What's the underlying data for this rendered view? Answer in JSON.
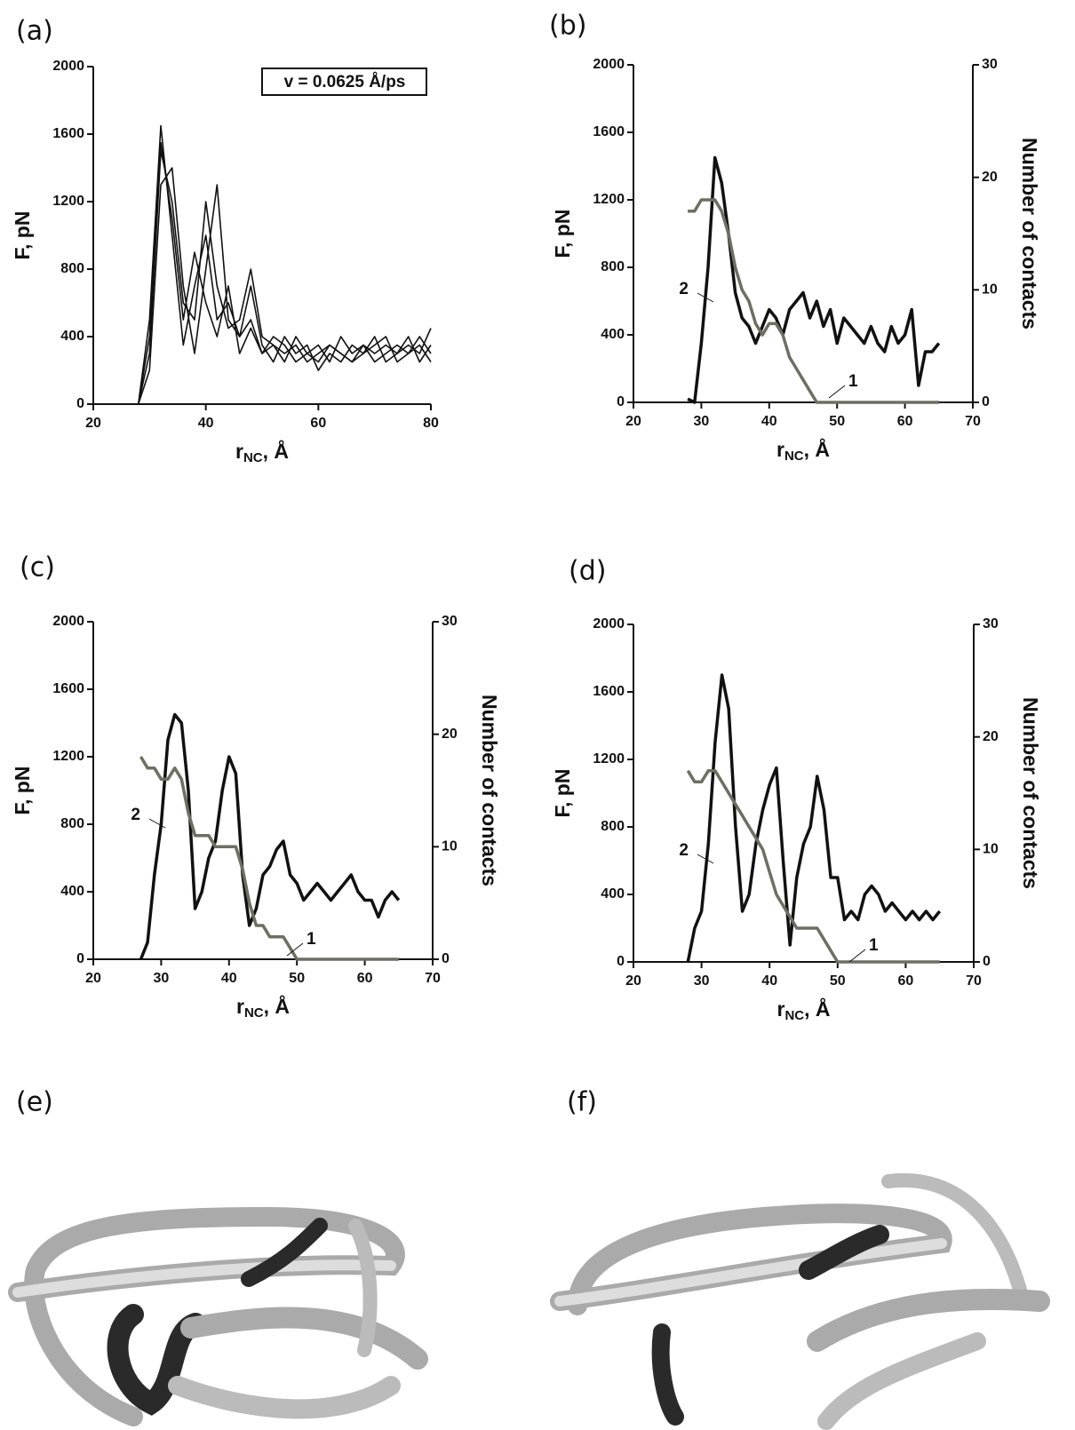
{
  "chart_data": [
    {
      "type": "line",
      "label": "(a)",
      "annotation": "v = 0.0625 Å/ps",
      "xlabel": {
        "main": "r",
        "sub": "NC",
        "rest": ", Å"
      },
      "ylabel": "F, pN",
      "xlim": [
        20,
        80
      ],
      "xticks": [
        20,
        40,
        60,
        80
      ],
      "ylim": [
        0,
        2000
      ],
      "yticks": [
        0,
        400,
        800,
        1200,
        1600,
        2000
      ],
      "x": [
        28,
        30,
        32,
        34,
        36,
        38,
        40,
        42,
        44,
        46,
        48,
        50,
        52,
        54,
        56,
        58,
        60,
        62,
        64,
        66,
        68,
        70,
        72,
        74,
        76,
        78,
        80
      ],
      "series": [
        {
          "color": "#111111",
          "values": [
            0,
            300,
            1500,
            1200,
            600,
            500,
            1200,
            700,
            450,
            500,
            800,
            400,
            350,
            300,
            350,
            250,
            300,
            350,
            300,
            250,
            350,
            300,
            350,
            300,
            400,
            250,
            350
          ]
        },
        {
          "color": "#111111",
          "values": [
            0,
            500,
            1650,
            1000,
            350,
            700,
            1000,
            500,
            600,
            400,
            500,
            300,
            400,
            350,
            250,
            300,
            350,
            250,
            400,
            300,
            350,
            250,
            300,
            350,
            300,
            400,
            300
          ]
        },
        {
          "color": "#111111",
          "values": [
            0,
            200,
            1300,
            1400,
            700,
            300,
            800,
            1300,
            500,
            400,
            700,
            350,
            250,
            400,
            300,
            350,
            200,
            300,
            250,
            350,
            300,
            400,
            250,
            300,
            350,
            300,
            450
          ]
        },
        {
          "color": "#111111",
          "values": [
            0,
            400,
            1550,
            1100,
            500,
            900,
            600,
            400,
            700,
            300,
            450,
            300,
            350,
            250,
            400,
            300,
            250,
            350,
            300,
            250,
            300,
            350,
            400,
            250,
            300,
            350,
            250
          ]
        }
      ]
    },
    {
      "type": "line",
      "label": "(b)",
      "xlabel": {
        "main": "r",
        "sub": "NC",
        "rest": ", Å"
      },
      "ylabel": "F, pN",
      "y2label": "Number of contacts",
      "xlim": [
        20,
        70
      ],
      "xticks": [
        20,
        30,
        40,
        50,
        60,
        70
      ],
      "ylim": [
        0,
        2000
      ],
      "yticks": [
        0,
        400,
        800,
        1200,
        1600,
        2000
      ],
      "y2lim": [
        0,
        30
      ],
      "y2ticks": [
        0,
        10,
        20,
        30
      ],
      "x": [
        28,
        29,
        30,
        31,
        32,
        33,
        34,
        35,
        36,
        37,
        38,
        39,
        40,
        41,
        42,
        43,
        44,
        45,
        46,
        47,
        48,
        49,
        50,
        51,
        52,
        53,
        54,
        55,
        56,
        57,
        58,
        59,
        60,
        61,
        62,
        63,
        64,
        65
      ],
      "series": [
        {
          "name": "2",
          "color": "#111111",
          "values": [
            20,
            0,
            350,
            800,
            1450,
            1300,
            1000,
            650,
            500,
            450,
            350,
            450,
            550,
            500,
            400,
            550,
            600,
            650,
            500,
            600,
            450,
            550,
            350,
            500,
            450,
            400,
            350,
            450,
            350,
            300,
            450,
            350,
            400,
            550,
            100,
            300,
            300,
            350
          ]
        },
        {
          "name": "1",
          "color": "#6e6e62",
          "axis": "y2",
          "values": [
            17,
            17,
            18,
            18,
            18,
            17,
            15,
            12,
            10,
            9,
            7,
            6,
            7,
            7,
            6,
            4,
            3,
            2,
            1,
            0,
            0,
            0,
            0,
            0,
            0,
            0,
            0,
            0,
            0,
            0,
            0,
            0,
            0,
            0,
            0,
            0,
            0,
            0
          ]
        }
      ]
    },
    {
      "type": "line",
      "label": "(c)",
      "xlabel": {
        "main": "r",
        "sub": "NC",
        "rest": ", Å"
      },
      "ylabel": "F, pN",
      "y2label": "Number of contacts",
      "xlim": [
        20,
        70
      ],
      "xticks": [
        20,
        30,
        40,
        50,
        60,
        70
      ],
      "ylim": [
        0,
        2000
      ],
      "yticks": [
        0,
        400,
        800,
        1200,
        1600,
        2000
      ],
      "y2lim": [
        0,
        30
      ],
      "y2ticks": [
        0,
        10,
        20,
        30
      ],
      "x": [
        27,
        28,
        29,
        30,
        31,
        32,
        33,
        34,
        35,
        36,
        37,
        38,
        39,
        40,
        41,
        42,
        43,
        44,
        45,
        46,
        47,
        48,
        49,
        50,
        51,
        52,
        53,
        54,
        55,
        56,
        57,
        58,
        59,
        60,
        61,
        62,
        63,
        64,
        65
      ],
      "series": [
        {
          "name": "2",
          "color": "#111111",
          "values": [
            0,
            100,
            500,
            800,
            1300,
            1450,
            1400,
            1000,
            300,
            400,
            600,
            700,
            1000,
            1200,
            1100,
            500,
            200,
            300,
            500,
            550,
            650,
            700,
            500,
            450,
            350,
            400,
            450,
            400,
            350,
            400,
            450,
            500,
            400,
            350,
            350,
            250,
            350,
            400,
            350
          ]
        },
        {
          "name": "1",
          "color": "#6e6e62",
          "axis": "y2",
          "values": [
            18,
            17,
            17,
            16,
            16,
            17,
            16,
            13,
            11,
            11,
            11,
            10,
            10,
            10,
            10,
            8,
            5,
            3,
            3,
            2,
            2,
            2,
            1,
            0,
            0,
            0,
            0,
            0,
            0,
            0,
            0,
            0,
            0,
            0,
            0,
            0,
            0,
            0,
            0
          ]
        }
      ]
    },
    {
      "type": "line",
      "label": "(d)",
      "xlabel": {
        "main": "r",
        "sub": "NC",
        "rest": ", Å"
      },
      "ylabel": "F, pN",
      "y2label": "Number of contacts",
      "xlim": [
        20,
        70
      ],
      "xticks": [
        20,
        30,
        40,
        50,
        60,
        70
      ],
      "ylim": [
        0,
        2000
      ],
      "yticks": [
        0,
        400,
        800,
        1200,
        1600,
        2000
      ],
      "y2lim": [
        0,
        30
      ],
      "y2ticks": [
        0,
        10,
        20,
        30
      ],
      "x": [
        28,
        29,
        30,
        31,
        32,
        33,
        34,
        35,
        36,
        37,
        38,
        39,
        40,
        41,
        42,
        43,
        44,
        45,
        46,
        47,
        48,
        49,
        50,
        51,
        52,
        53,
        54,
        55,
        56,
        57,
        58,
        59,
        60,
        61,
        62,
        63,
        64,
        65
      ],
      "series": [
        {
          "name": "2",
          "color": "#111111",
          "values": [
            0,
            200,
            300,
            700,
            1300,
            1700,
            1500,
            800,
            300,
            400,
            700,
            900,
            1050,
            1150,
            600,
            100,
            500,
            700,
            800,
            1100,
            900,
            500,
            500,
            250,
            300,
            250,
            400,
            450,
            400,
            300,
            350,
            300,
            250,
            300,
            250,
            300,
            250,
            300
          ]
        },
        {
          "name": "1",
          "color": "#6e6e62",
          "axis": "y2",
          "values": [
            17,
            16,
            16,
            17,
            17,
            16,
            15,
            14,
            13,
            12,
            11,
            10,
            8,
            6,
            5,
            4,
            3,
            3,
            3,
            3,
            2,
            1,
            0,
            0,
            0,
            0,
            0,
            0,
            0,
            0,
            0,
            0,
            0,
            0,
            0,
            0,
            0,
            0
          ]
        }
      ]
    }
  ],
  "figures": [
    {
      "label": "(e)"
    },
    {
      "label": "(f)"
    }
  ]
}
